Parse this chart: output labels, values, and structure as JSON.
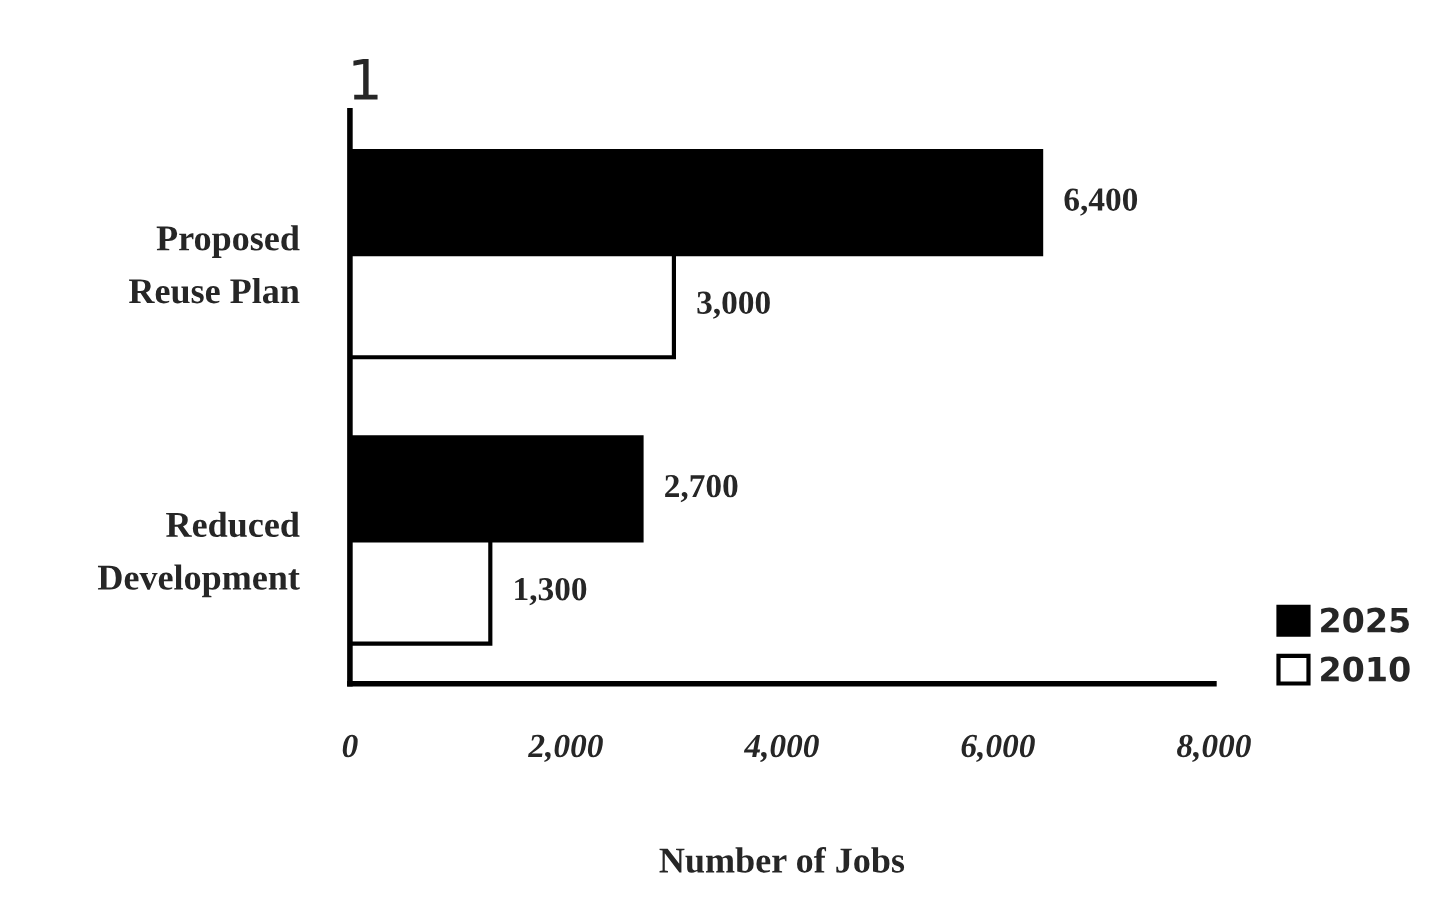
{
  "chart_data": {
    "type": "bar",
    "orientation": "horizontal",
    "xlabel": "Number of Jobs",
    "categories": [
      "Proposed\nReuse Plan",
      "Reduced\nDevelopment"
    ],
    "series": [
      {
        "name": "2025",
        "color": "#000000",
        "values": [
          6400,
          2700
        ],
        "value_labels": [
          "6,400",
          "2,700"
        ]
      },
      {
        "name": "2010",
        "color": "#ffffff",
        "values": [
          3000,
          1300
        ],
        "value_labels": [
          "3,000",
          "1,300"
        ]
      }
    ],
    "xlim": [
      0,
      8000
    ],
    "xticks": [
      0,
      {
        "value": 2000,
        "label": "2,000"
      },
      {
        "value": 4000,
        "label": "4,000"
      },
      {
        "value": 6000,
        "label": "6,000"
      },
      {
        "value": 8000,
        "label": "8,000"
      }
    ],
    "annotations": [
      "1"
    ],
    "legend": "bottom right",
    "grid": false
  }
}
